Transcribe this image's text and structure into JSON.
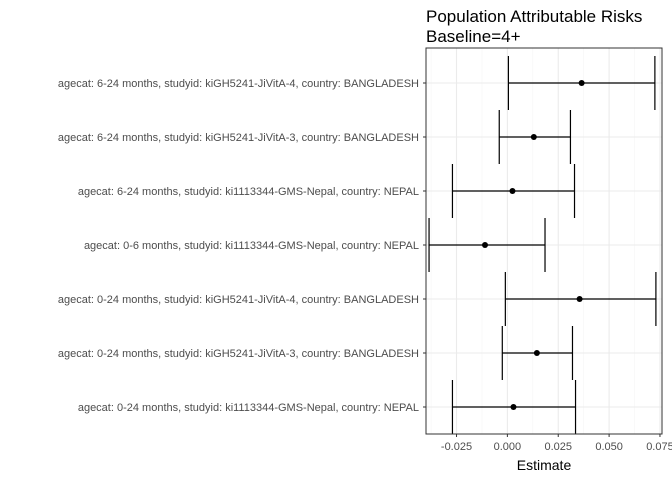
{
  "chart_data": {
    "type": "forest",
    "title": [
      "Population Attributable Risks",
      "Baseline=4+"
    ],
    "xlabel": "Estimate",
    "ylabel": "",
    "xlim": [
      -0.04,
      0.076
    ],
    "x_ticks": [
      -0.025,
      0.0,
      0.025,
      0.05,
      0.075
    ],
    "x_tick_labels": [
      "-0.025",
      "0.000",
      "0.025",
      "0.050",
      "0.075"
    ],
    "grid": true,
    "rows": [
      {
        "label": "agecat: 6-24 months, studyid: kiGH5241-JiVitA-4, country: BANGLADESH",
        "estimate": 0.0365,
        "lower": 0.0005,
        "upper": 0.0725
      },
      {
        "label": "agecat: 6-24 months, studyid: kiGH5241-JiVitA-3, country: BANGLADESH",
        "estimate": 0.013,
        "lower": -0.004,
        "upper": 0.031
      },
      {
        "label": "agecat: 6-24 months, studyid: ki1113344-GMS-Nepal, country: NEPAL",
        "estimate": 0.0025,
        "lower": -0.027,
        "upper": 0.033
      },
      {
        "label": "agecat: 0-6 months, studyid: ki1113344-GMS-Nepal, country: NEPAL",
        "estimate": -0.011,
        "lower": -0.0385,
        "upper": 0.0185
      },
      {
        "label": "agecat: 0-24 months, studyid: kiGH5241-JiVitA-4, country: BANGLADESH",
        "estimate": 0.0355,
        "lower": -0.001,
        "upper": 0.073
      },
      {
        "label": "agecat: 0-24 months, studyid: kiGH5241-JiVitA-3, country: BANGLADESH",
        "estimate": 0.0145,
        "lower": -0.0025,
        "upper": 0.032
      },
      {
        "label": "agecat: 0-24 months, studyid: ki1113344-GMS-Nepal, country: NEPAL",
        "estimate": 0.003,
        "lower": -0.027,
        "upper": 0.0335
      }
    ],
    "colors": {
      "panel_border": "#333333",
      "grid_major": "#ebebeb",
      "grid_minor": "#f5f5f5",
      "marks": "#000000"
    }
  }
}
